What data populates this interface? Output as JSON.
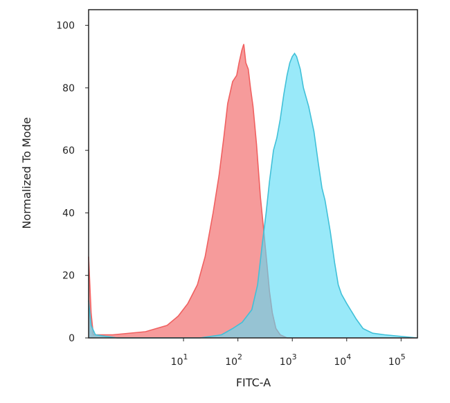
{
  "chart_data": {
    "type": "area",
    "title": "",
    "xlabel": "FITC-A",
    "ylabel": "Normalized To Mode",
    "x_scale": "log",
    "xlim": [
      0.18,
      200000
    ],
    "ylim": [
      0,
      105
    ],
    "grid": false,
    "legend": "none",
    "yticks": [
      {
        "value": 0,
        "label": "0"
      },
      {
        "value": 20,
        "label": "20"
      },
      {
        "value": 40,
        "label": "40"
      },
      {
        "value": 60,
        "label": "60"
      },
      {
        "value": 80,
        "label": "80"
      },
      {
        "value": 100,
        "label": "100"
      }
    ],
    "xticks": [
      {
        "value": 10,
        "base": "10",
        "exp": "1"
      },
      {
        "value": 100,
        "base": "10",
        "exp": "2"
      },
      {
        "value": 1000,
        "base": "10",
        "exp": "3"
      },
      {
        "value": 10000,
        "base": "10",
        "exp": "4"
      },
      {
        "value": 100000,
        "base": "10",
        "exp": "5"
      }
    ],
    "series": [
      {
        "color": "#f06060",
        "fill": "#f58a8a",
        "points": [
          [
            0.18,
            26
          ],
          [
            0.2,
            8
          ],
          [
            0.22,
            1
          ],
          [
            0.5,
            1
          ],
          [
            2,
            2
          ],
          [
            5,
            4
          ],
          [
            8,
            7
          ],
          [
            12,
            11
          ],
          [
            18,
            17
          ],
          [
            25,
            26
          ],
          [
            35,
            40
          ],
          [
            45,
            52
          ],
          [
            55,
            64
          ],
          [
            65,
            75
          ],
          [
            80,
            82
          ],
          [
            95,
            84
          ],
          [
            105,
            88
          ],
          [
            118,
            92
          ],
          [
            128,
            94
          ],
          [
            140,
            88
          ],
          [
            155,
            86
          ],
          [
            170,
            80
          ],
          [
            190,
            74
          ],
          [
            220,
            62
          ],
          [
            260,
            45
          ],
          [
            300,
            34
          ],
          [
            340,
            24
          ],
          [
            380,
            15
          ],
          [
            430,
            8
          ],
          [
            500,
            3
          ],
          [
            600,
            1
          ],
          [
            800,
            0
          ],
          [
            200000,
            0
          ]
        ]
      },
      {
        "color": "#40c0d8",
        "fill": "#5bdcf5",
        "points": [
          [
            0.18,
            12
          ],
          [
            0.2,
            4
          ],
          [
            0.24,
            1
          ],
          [
            0.6,
            0
          ],
          [
            20,
            0
          ],
          [
            50,
            1
          ],
          [
            80,
            3
          ],
          [
            120,
            5
          ],
          [
            180,
            9
          ],
          [
            230,
            17
          ],
          [
            280,
            30
          ],
          [
            330,
            40
          ],
          [
            380,
            50
          ],
          [
            450,
            60
          ],
          [
            520,
            64
          ],
          [
            600,
            70
          ],
          [
            700,
            78
          ],
          [
            800,
            84
          ],
          [
            900,
            88
          ],
          [
            1000,
            90
          ],
          [
            1100,
            91
          ],
          [
            1200,
            90
          ],
          [
            1400,
            86
          ],
          [
            1600,
            80
          ],
          [
            2000,
            74
          ],
          [
            2500,
            66
          ],
          [
            3000,
            56
          ],
          [
            3500,
            48
          ],
          [
            4000,
            44
          ],
          [
            5000,
            34
          ],
          [
            6000,
            24
          ],
          [
            7000,
            17
          ],
          [
            8000,
            14
          ],
          [
            10000,
            11
          ],
          [
            15000,
            6
          ],
          [
            20000,
            3
          ],
          [
            30000,
            1.5
          ],
          [
            50000,
            1
          ],
          [
            200000,
            0
          ]
        ]
      }
    ]
  }
}
